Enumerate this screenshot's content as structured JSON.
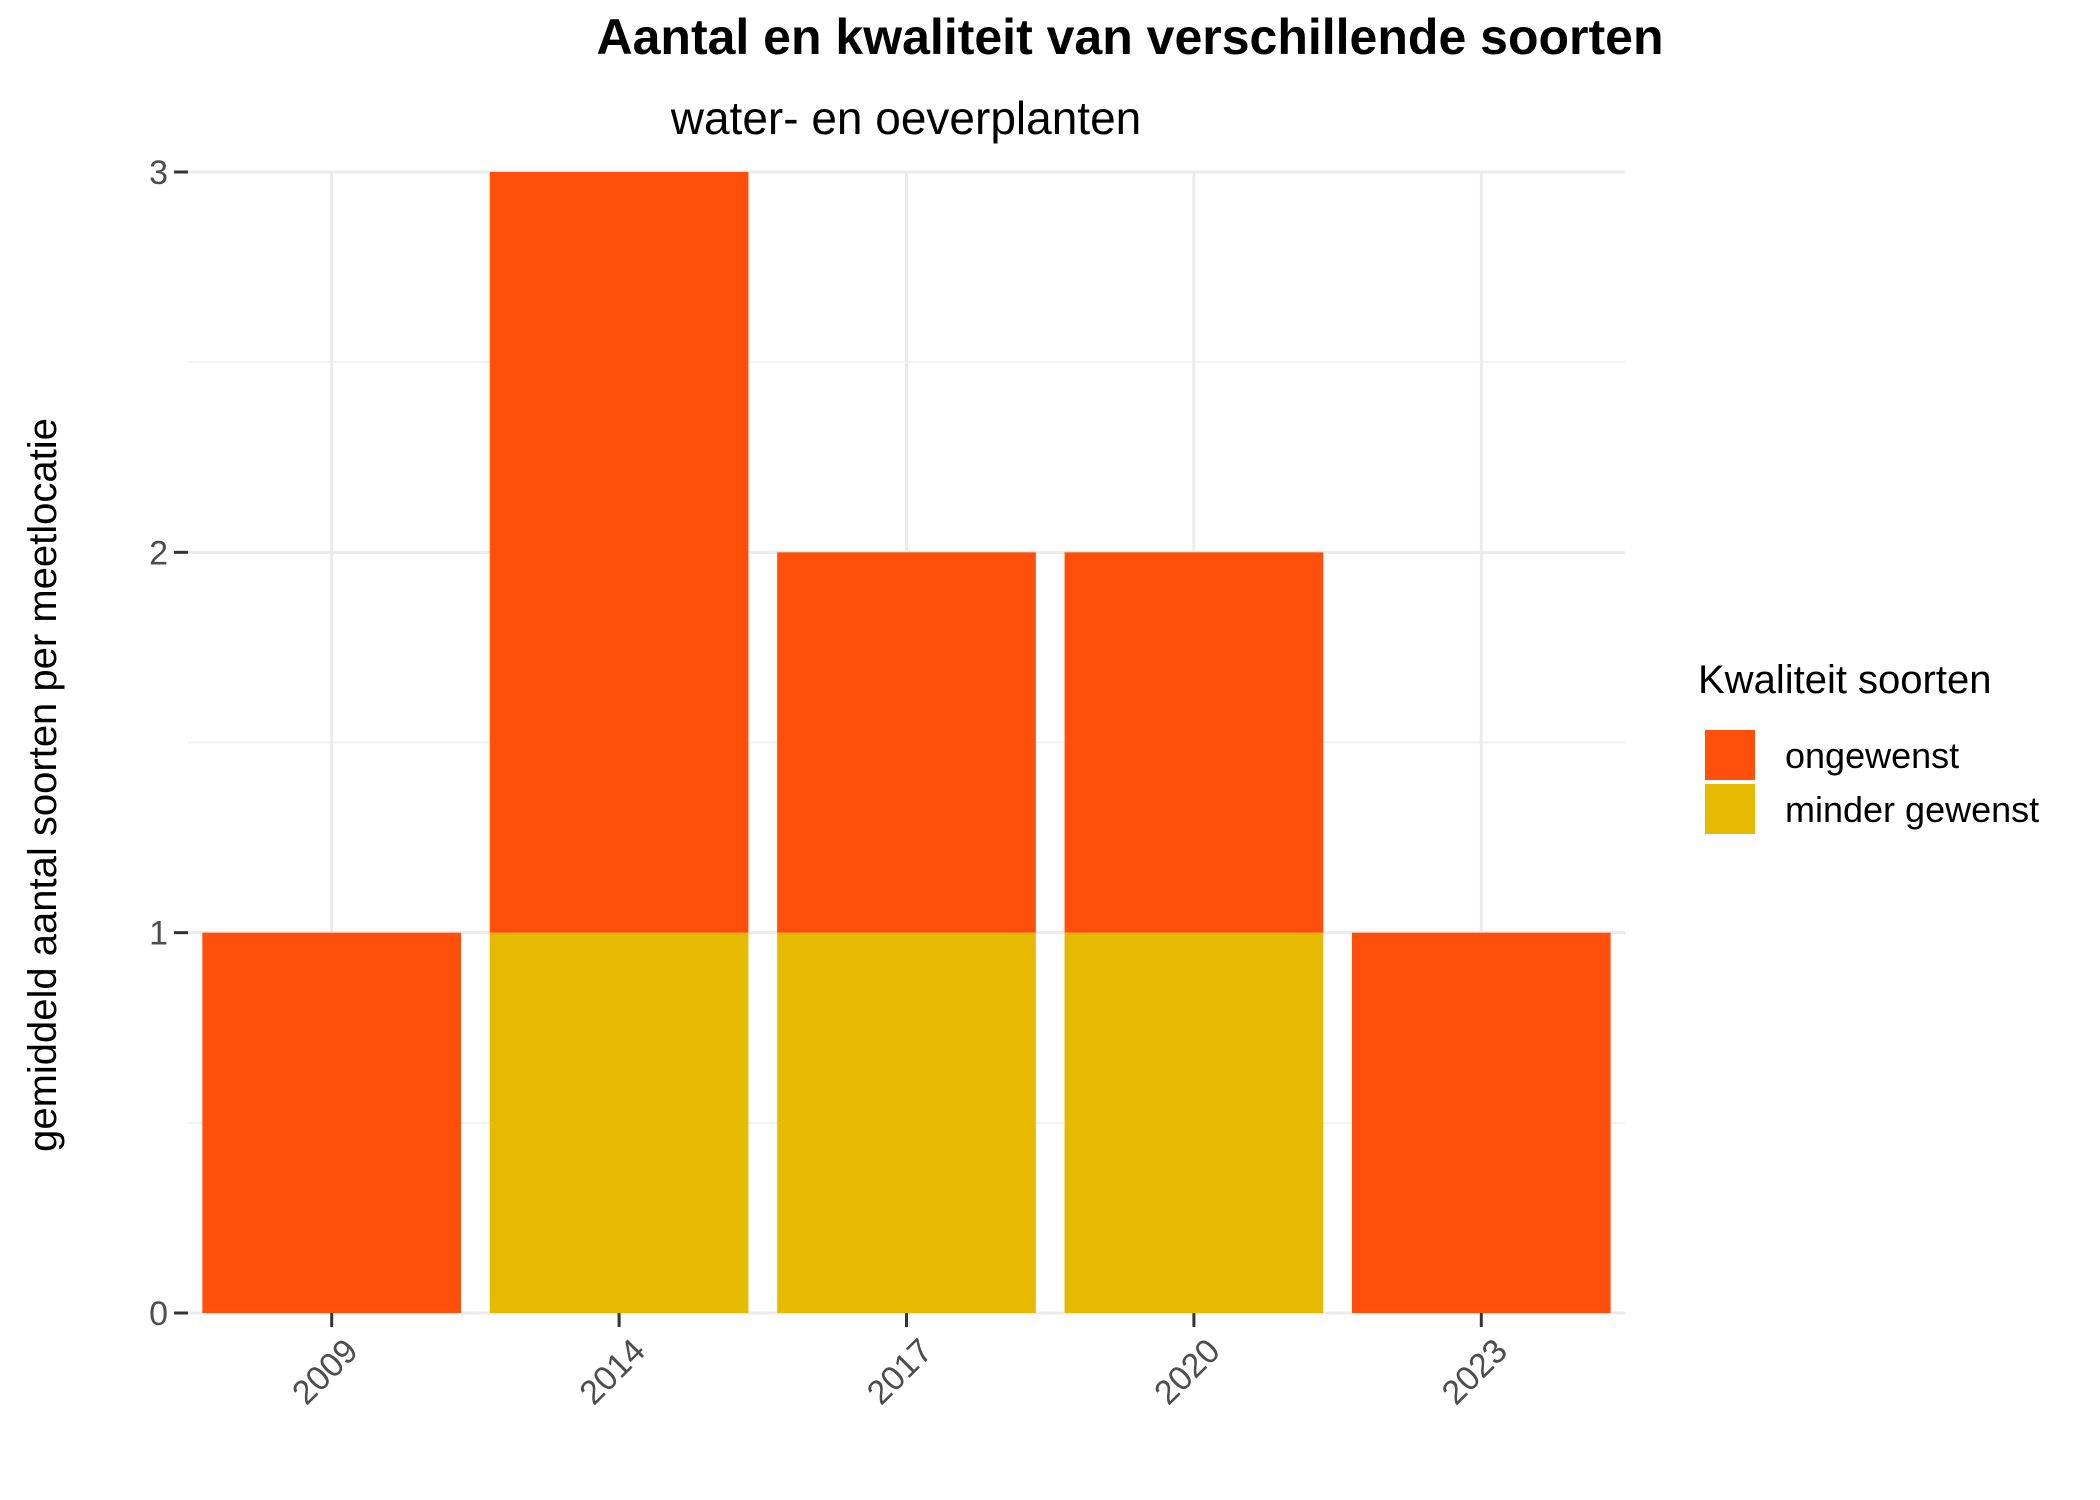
{
  "chart_data": {
    "type": "bar",
    "stacked": true,
    "title": "Aantal en kwaliteit van verschillende soorten",
    "subtitle": "water- en oeverplanten",
    "xlabel": "",
    "ylabel": "gemiddeld aantal soorten per meetlocatie",
    "categories": [
      "2009",
      "2014",
      "2017",
      "2020",
      "2023"
    ],
    "series": [
      {
        "name": "minder gewenst",
        "color": "#E6BA00",
        "values": [
          0,
          1,
          1,
          1,
          0
        ]
      },
      {
        "name": "ongewenst",
        "color": "#FF4F0A",
        "values": [
          1,
          2,
          1,
          1,
          1
        ]
      }
    ],
    "ylim": [
      0,
      3
    ],
    "yticks": [
      "0",
      "1",
      "2",
      "3"
    ],
    "grid": true,
    "legend": {
      "title": "Kwaliteit soorten",
      "placement": "right",
      "entries": [
        {
          "label": "ongewenst",
          "color": "#FF4F0A"
        },
        {
          "label": "minder gewenst",
          "color": "#E6BA00"
        }
      ]
    }
  }
}
